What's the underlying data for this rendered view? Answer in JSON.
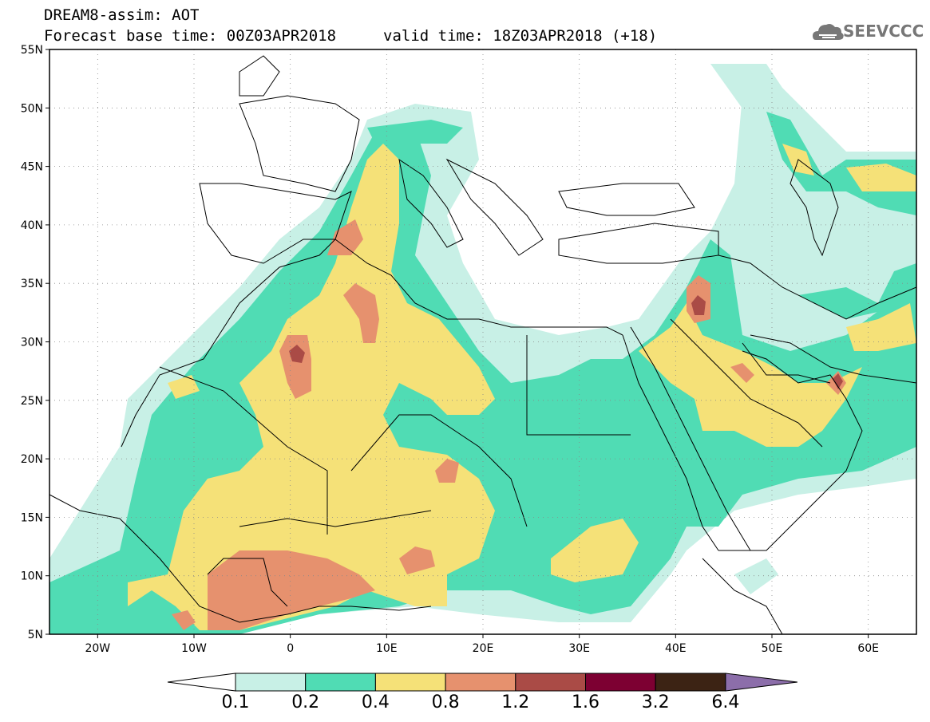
{
  "header": {
    "title_line1": "DREAM8-assim: AOT",
    "title_line2": "Forecast base time: 00Z03APR2018",
    "valid_time": "valid time: 18Z03APR2018 (+18)",
    "logo_text": "SEEVCCC",
    "logo_icon": "cloud-icon"
  },
  "map": {
    "variable": "AOT",
    "lon_range": [
      -25,
      65
    ],
    "lat_range": [
      5,
      55
    ],
    "lat_ticks": [
      "5N",
      "10N",
      "15N",
      "20N",
      "25N",
      "30N",
      "35N",
      "40N",
      "45N",
      "50N",
      "55N"
    ],
    "lon_ticks": [
      "20W",
      "10W",
      "0",
      "10E",
      "20E",
      "30E",
      "40E",
      "50E",
      "60E"
    ],
    "grid": true
  },
  "colorbar": {
    "labels": [
      "0.1",
      "0.2",
      "0.4",
      "0.8",
      "1.2",
      "1.6",
      "3.2",
      "6.4"
    ],
    "colors": [
      "#ffffff",
      "#c8f0e6",
      "#50dcb4",
      "#f5e178",
      "#e6916e",
      "#aa4b46",
      "#7d0032",
      "#3c2314",
      "#8c6eaa"
    ]
  }
}
